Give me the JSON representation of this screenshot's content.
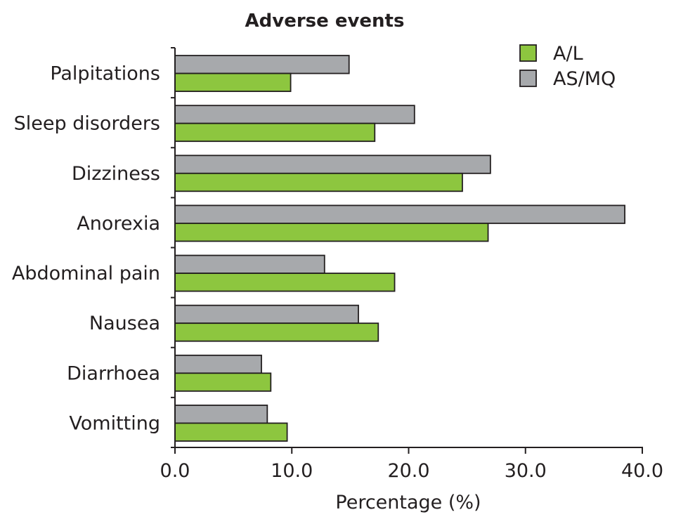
{
  "chart_data": {
    "type": "bar",
    "orientation": "horizontal",
    "title": "Adverse events",
    "xlabel": "Percentage (%)",
    "ylabel": "",
    "xlim": [
      0,
      40
    ],
    "xticks": [
      "0.0",
      "10.0",
      "20.0",
      "30.0",
      "40.0"
    ],
    "categories": [
      "Palpitations",
      "Sleep disorders",
      "Dizziness",
      "Anorexia",
      "Abdominal pain",
      "Nausea",
      "Diarrhoea",
      "Vomitting"
    ],
    "series": [
      {
        "name": "A/L",
        "color": "#8dc63f",
        "values": [
          9.9,
          17.1,
          24.6,
          26.8,
          18.8,
          17.4,
          8.2,
          9.6
        ]
      },
      {
        "name": "AS/MQ",
        "color": "#a7a9ac",
        "values": [
          14.9,
          20.5,
          27.0,
          38.5,
          12.8,
          15.7,
          7.4,
          7.9
        ]
      }
    ],
    "legend": "top-right",
    "grid": false
  }
}
